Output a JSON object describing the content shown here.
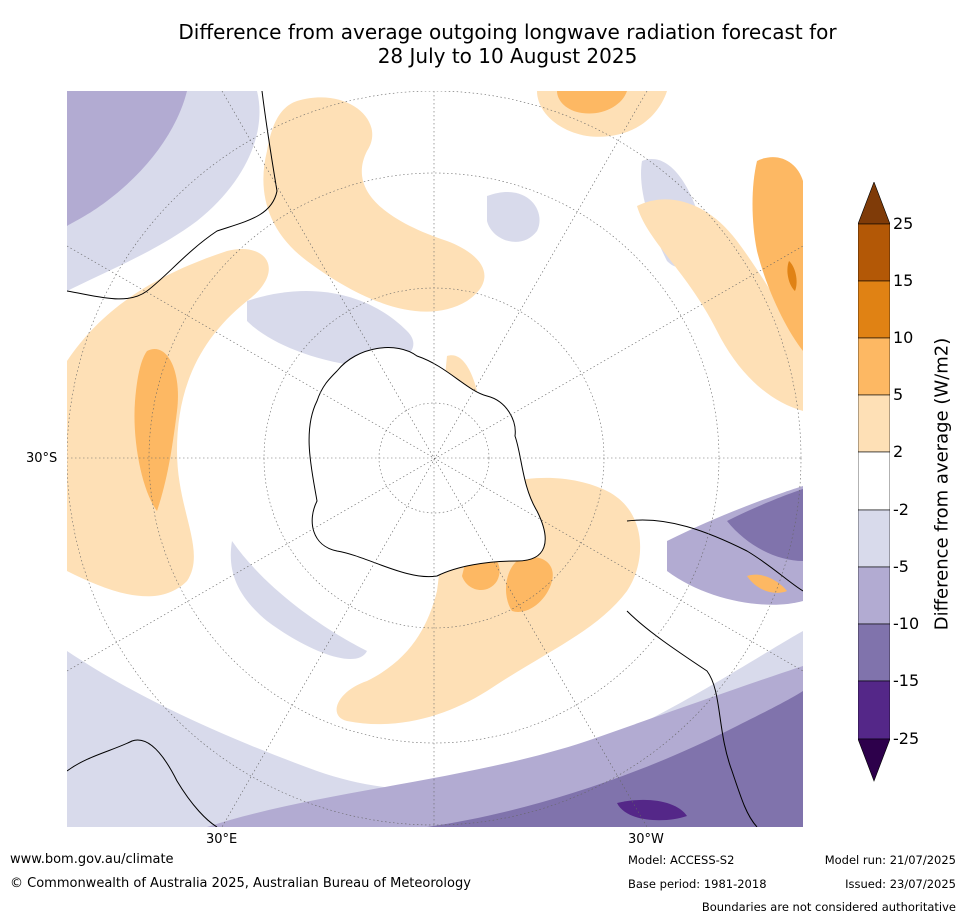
{
  "title_line1": "Difference from average outgoing longwave radiation forecast for",
  "title_line2": "28 July to 10 August 2025",
  "map_labels": {
    "lat": "30°S",
    "lon_east": "30°E",
    "lon_west": "30°W"
  },
  "colorbar": {
    "title": "Difference from average (W/m2)",
    "ticks": [
      "25",
      "15",
      "10",
      "5",
      "2",
      "-2",
      "-5",
      "-10",
      "-15",
      "-25"
    ],
    "colors": {
      "gt25": "#7f3b08",
      "15_25": "#b35806",
      "10_15": "#e08214",
      "5_10": "#fdb863",
      "2_5": "#fee0b6",
      "neutral": "#ffffff",
      "m2_m5": "#d8daeb",
      "m5_m10": "#b2abd2",
      "m10_m15": "#8073ac",
      "m15_m25": "#542788",
      "lt_m25": "#2d004b"
    }
  },
  "footer": {
    "website": "www.bom.gov.au/climate",
    "copyright": "© Commonwealth of Australia 2025, Australian Bureau of Meteorology",
    "model": "Model: ACCESS-S2",
    "base_period": "Base period: 1981-2018",
    "model_run": "Model run: 21/07/2025",
    "issued": "Issued: 23/07/2025",
    "disclaimer": "Boundaries are not considered authoritative"
  }
}
